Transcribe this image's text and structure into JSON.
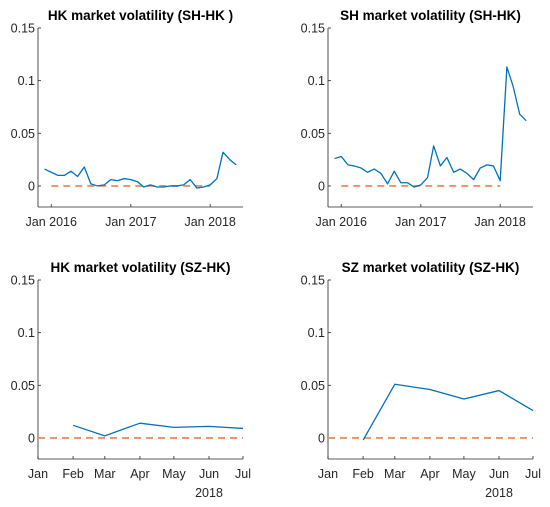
{
  "colors": {
    "series": "#0072bd",
    "reference": "#e9916b"
  },
  "chart_data": [
    {
      "type": "line",
      "title": "HK market volatility (SH-HK )",
      "xlabel": "",
      "ylabel": "",
      "xlim": [
        "2015-11-01",
        "2018-06-01"
      ],
      "ylim": [
        -0.02,
        0.15
      ],
      "yticks": [
        0,
        0.05,
        0.1,
        0.15
      ],
      "ytick_labels": [
        "0",
        "0.05",
        "0.1",
        "0.15"
      ],
      "xticks": [
        {
          "date": "2016-01-01",
          "label": "Jan 2016",
          "label2": ""
        },
        {
          "date": "2017-01-01",
          "label": "Jan 2017",
          "label2": ""
        },
        {
          "date": "2018-01-01",
          "label": "Jan 2018",
          "label2": ""
        }
      ],
      "series": [
        {
          "x": [
            "2015-12-01",
            "2016-01-01",
            "2016-02-01",
            "2016-03-01",
            "2016-04-01",
            "2016-05-01",
            "2016-06-01",
            "2016-07-01",
            "2016-08-01",
            "2016-09-01",
            "2016-10-01",
            "2016-11-01",
            "2016-12-01",
            "2017-01-01",
            "2017-02-01",
            "2017-03-01",
            "2017-04-01",
            "2017-05-01",
            "2017-06-01",
            "2017-07-01",
            "2017-08-01",
            "2017-09-01",
            "2017-10-01",
            "2017-11-01",
            "2017-12-01",
            "2018-01-01",
            "2018-02-01",
            "2018-03-01",
            "2018-04-01",
            "2018-05-01"
          ],
          "y": [
            0.016,
            0.013,
            0.01,
            0.01,
            0.014,
            0.009,
            0.018,
            0.002,
            0.0,
            0.001,
            0.006,
            0.005,
            0.007,
            0.006,
            0.004,
            -0.001,
            0.001,
            -0.001,
            -0.001,
            0.0,
            0.0,
            0.001,
            0.006,
            -0.002,
            -0.001,
            0.001,
            0.007,
            0.032,
            0.025,
            0.02
          ]
        }
      ],
      "reference": {
        "y": 0
      }
    },
    {
      "type": "line",
      "title": "SH market volatility (SH-HK)",
      "xlabel": "",
      "ylabel": "",
      "xlim": [
        "2015-11-01",
        "2018-06-01"
      ],
      "ylim": [
        -0.02,
        0.15
      ],
      "yticks": [
        0,
        0.05,
        0.1,
        0.15
      ],
      "ytick_labels": [
        "0",
        "0.05",
        "0.1",
        "0.15"
      ],
      "xticks": [
        {
          "date": "2016-01-01",
          "label": "Jan 2016",
          "label2": ""
        },
        {
          "date": "2017-01-01",
          "label": "Jan 2017",
          "label2": ""
        },
        {
          "date": "2018-01-01",
          "label": "Jan 2018",
          "label2": ""
        }
      ],
      "series": [
        {
          "x": [
            "2015-12-01",
            "2016-01-01",
            "2016-02-01",
            "2016-03-01",
            "2016-04-01",
            "2016-05-01",
            "2016-06-01",
            "2016-07-01",
            "2016-08-01",
            "2016-09-01",
            "2016-10-01",
            "2016-11-01",
            "2016-12-01",
            "2017-01-01",
            "2017-02-01",
            "2017-03-01",
            "2017-04-01",
            "2017-05-01",
            "2017-06-01",
            "2017-07-01",
            "2017-08-01",
            "2017-09-01",
            "2017-10-01",
            "2017-11-01",
            "2017-12-01",
            "2018-01-01",
            "2018-02-01",
            "2018-03-01",
            "2018-04-01",
            "2018-05-01"
          ],
          "y": [
            0.026,
            0.028,
            0.02,
            0.019,
            0.017,
            0.013,
            0.016,
            0.012,
            0.002,
            0.014,
            0.003,
            0.003,
            -0.001,
            0.001,
            0.008,
            0.038,
            0.019,
            0.027,
            0.013,
            0.016,
            0.012,
            0.006,
            0.017,
            0.02,
            0.019,
            0.005,
            0.113,
            0.095,
            0.068,
            0.062
          ]
        }
      ],
      "reference": {
        "y": 0
      }
    },
    {
      "type": "line",
      "title": "HK market volatility (SZ-HK)",
      "xlabel": "",
      "ylabel": "",
      "xlim": [
        "2018-01-01",
        "2018-07-01"
      ],
      "ylim": [
        -0.02,
        0.15
      ],
      "yticks": [
        0,
        0.05,
        0.1,
        0.15
      ],
      "ytick_labels": [
        "0",
        "0.05",
        "0.1",
        "0.15"
      ],
      "xticks": [
        {
          "date": "2018-01-01",
          "label": "Jan",
          "label2": ""
        },
        {
          "date": "2018-02-01",
          "label": "Feb",
          "label2": ""
        },
        {
          "date": "2018-03-01",
          "label": "Mar",
          "label2": ""
        },
        {
          "date": "2018-04-01",
          "label": "Apr",
          "label2": ""
        },
        {
          "date": "2018-05-01",
          "label": "May",
          "label2": ""
        },
        {
          "date": "2018-06-01",
          "label": "Jun",
          "label2": "2018"
        },
        {
          "date": "2018-07-01",
          "label": "Jul",
          "label2": ""
        }
      ],
      "series": [
        {
          "x": [
            "2018-02-01",
            "2018-03-01",
            "2018-04-01",
            "2018-05-01",
            "2018-06-01",
            "2018-07-01"
          ],
          "y": [
            0.012,
            0.002,
            0.014,
            0.01,
            0.011,
            0.009
          ]
        }
      ],
      "reference": {
        "y": 0
      }
    },
    {
      "type": "line",
      "title": "SZ market volatility (SZ-HK)",
      "xlabel": "",
      "ylabel": "",
      "xlim": [
        "2018-01-01",
        "2018-07-01"
      ],
      "ylim": [
        -0.02,
        0.15
      ],
      "yticks": [
        0,
        0.05,
        0.1,
        0.15
      ],
      "ytick_labels": [
        "0",
        "0.05",
        "0.1",
        "0.15"
      ],
      "xticks": [
        {
          "date": "2018-01-01",
          "label": "Jan",
          "label2": ""
        },
        {
          "date": "2018-02-01",
          "label": "Feb",
          "label2": ""
        },
        {
          "date": "2018-03-01",
          "label": "Mar",
          "label2": ""
        },
        {
          "date": "2018-04-01",
          "label": "Apr",
          "label2": ""
        },
        {
          "date": "2018-05-01",
          "label": "May",
          "label2": ""
        },
        {
          "date": "2018-06-01",
          "label": "Jun",
          "label2": "2018"
        },
        {
          "date": "2018-07-01",
          "label": "Jul",
          "label2": ""
        }
      ],
      "series": [
        {
          "x": [
            "2018-02-01",
            "2018-03-01",
            "2018-04-01",
            "2018-05-01",
            "2018-06-01",
            "2018-07-01"
          ],
          "y": [
            -0.002,
            0.051,
            0.046,
            0.037,
            0.045,
            0.026
          ]
        }
      ],
      "reference": {
        "y": 0
      }
    }
  ]
}
